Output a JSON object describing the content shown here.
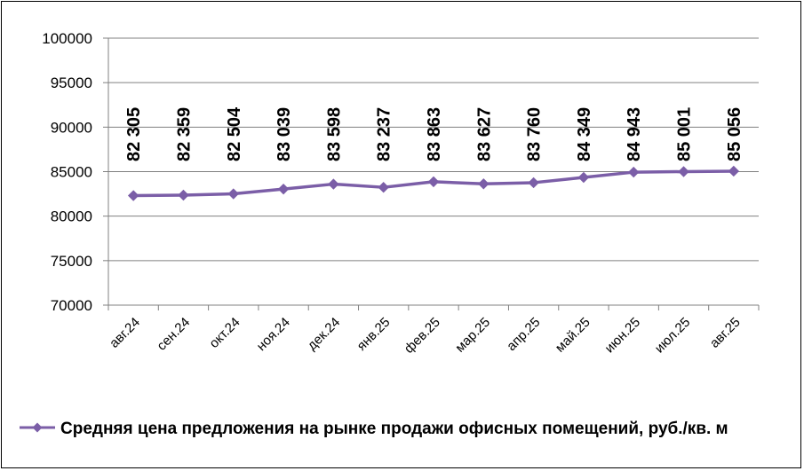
{
  "chart_data": {
    "type": "line",
    "title": "",
    "xlabel": "",
    "ylabel": "",
    "categories": [
      "авг.24",
      "сен.24",
      "окт.24",
      "ноя.24",
      "дек.24",
      "янв.25",
      "фев.25",
      "мар.25",
      "апр.25",
      "май.25",
      "июн.25",
      "июл.25",
      "авг.25"
    ],
    "series": [
      {
        "name": "Средняя цена предложения на рынке продажи офисных помещений,  руб./кв. м",
        "values": [
          82305,
          82359,
          82504,
          83039,
          83598,
          83237,
          83863,
          83627,
          83760,
          84349,
          84943,
          85001,
          85056
        ],
        "labels": [
          "82 305",
          "82 359",
          "82 504",
          "83 039",
          "83 598",
          "83 237",
          "83 863",
          "83 627",
          "83 760",
          "84 349",
          "84 943",
          "85 001",
          "85 056"
        ],
        "color": "#7B5EA7"
      }
    ],
    "ylim": [
      70000,
      100000
    ],
    "y_ticks": [
      70000,
      75000,
      80000,
      85000,
      90000,
      95000,
      100000
    ],
    "y_tick_labels": [
      "70000",
      "75000",
      "80000",
      "85000",
      "90000",
      "95000",
      "100000"
    ],
    "grid": true,
    "legend_position": "bottom",
    "marker": "diamond"
  },
  "colors": {
    "series": "#7B5EA7",
    "grid": "#808080",
    "axis": "#808080",
    "text": "#000000"
  }
}
